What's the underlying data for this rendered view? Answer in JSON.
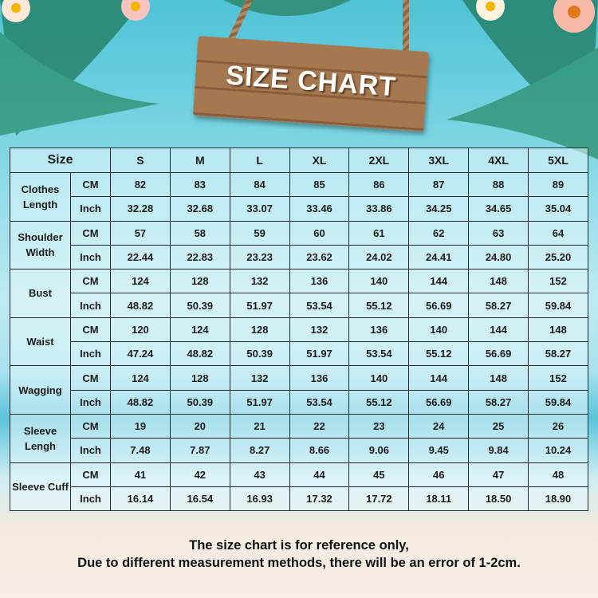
{
  "title": "SIZE CHART",
  "table": {
    "size_header": "Size",
    "sizes": [
      "S",
      "M",
      "L",
      "XL",
      "2XL",
      "3XL",
      "4XL",
      "5XL"
    ],
    "rows": [
      {
        "label": "Clothes Length",
        "cm": [
          "82",
          "83",
          "84",
          "85",
          "86",
          "87",
          "88",
          "89"
        ],
        "inch": [
          "32.28",
          "32.68",
          "33.07",
          "33.46",
          "33.86",
          "34.25",
          "34.65",
          "35.04"
        ]
      },
      {
        "label": "Shoulder Width",
        "cm": [
          "57",
          "58",
          "59",
          "60",
          "61",
          "62",
          "63",
          "64"
        ],
        "inch": [
          "22.44",
          "22.83",
          "23.23",
          "23.62",
          "24.02",
          "24.41",
          "24.80",
          "25.20"
        ]
      },
      {
        "label": "Bust",
        "cm": [
          "124",
          "128",
          "132",
          "136",
          "140",
          "144",
          "148",
          "152"
        ],
        "inch": [
          "48.82",
          "50.39",
          "51.97",
          "53.54",
          "55.12",
          "56.69",
          "58.27",
          "59.84"
        ]
      },
      {
        "label": "Waist",
        "cm": [
          "120",
          "124",
          "128",
          "132",
          "136",
          "140",
          "144",
          "148"
        ],
        "inch": [
          "47.24",
          "48.82",
          "50.39",
          "51.97",
          "53.54",
          "55.12",
          "56.69",
          "58.27"
        ]
      },
      {
        "label": "Wagging",
        "cm": [
          "124",
          "128",
          "132",
          "136",
          "140",
          "144",
          "148",
          "152"
        ],
        "inch": [
          "48.82",
          "50.39",
          "51.97",
          "53.54",
          "55.12",
          "56.69",
          "58.27",
          "59.84"
        ]
      },
      {
        "label": "Sleeve Lengh",
        "cm": [
          "19",
          "20",
          "21",
          "22",
          "23",
          "24",
          "25",
          "26"
        ],
        "inch": [
          "7.48",
          "7.87",
          "8.27",
          "8.66",
          "9.06",
          "9.45",
          "9.84",
          "10.24"
        ]
      },
      {
        "label": "Sleeve Cuff",
        "cm": [
          "41",
          "42",
          "43",
          "44",
          "45",
          "46",
          "47",
          "48"
        ],
        "inch": [
          "16.14",
          "16.54",
          "16.93",
          "17.32",
          "17.72",
          "18.11",
          "18.50",
          "18.90"
        ]
      }
    ],
    "unit_cm": "CM",
    "unit_inch": "Inch"
  },
  "note": [
    "The size chart is for reference only,",
    "Due to different measurement methods, there will be an error of 1-2cm."
  ]
}
